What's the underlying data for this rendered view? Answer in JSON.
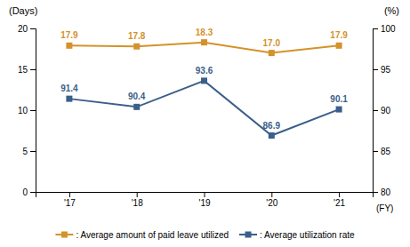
{
  "chart_data": {
    "type": "line",
    "categories": [
      "'17",
      "'18",
      "'19",
      "'20",
      "'21"
    ],
    "series": [
      {
        "name": ": Average amount of paid leave utilized",
        "color": "#D4922A",
        "marker": "square",
        "values": [
          17.9,
          17.8,
          18.3,
          17.0,
          17.9
        ],
        "value_labels": [
          "17.9",
          "17.8",
          "18.3",
          "17.0",
          "17.9"
        ]
      },
      {
        "name": ": Average utilization rate",
        "color": "#3A5F8A",
        "marker": "square",
        "axis": "y2",
        "values": [
          91.4,
          90.4,
          93.6,
          86.9,
          90.1
        ]
      }
    ],
    "ylabel": "(Days)",
    "y2label": "(%)",
    "xlabel": "(FY)",
    "ylim": [
      0,
      20
    ],
    "yticks": [
      0,
      5,
      10,
      15,
      20
    ],
    "y2lim": [
      80,
      100
    ],
    "y2ticks": [
      80,
      85,
      90,
      95,
      100
    ],
    "data_labels": true,
    "grid": false,
    "legend": "bottom"
  }
}
